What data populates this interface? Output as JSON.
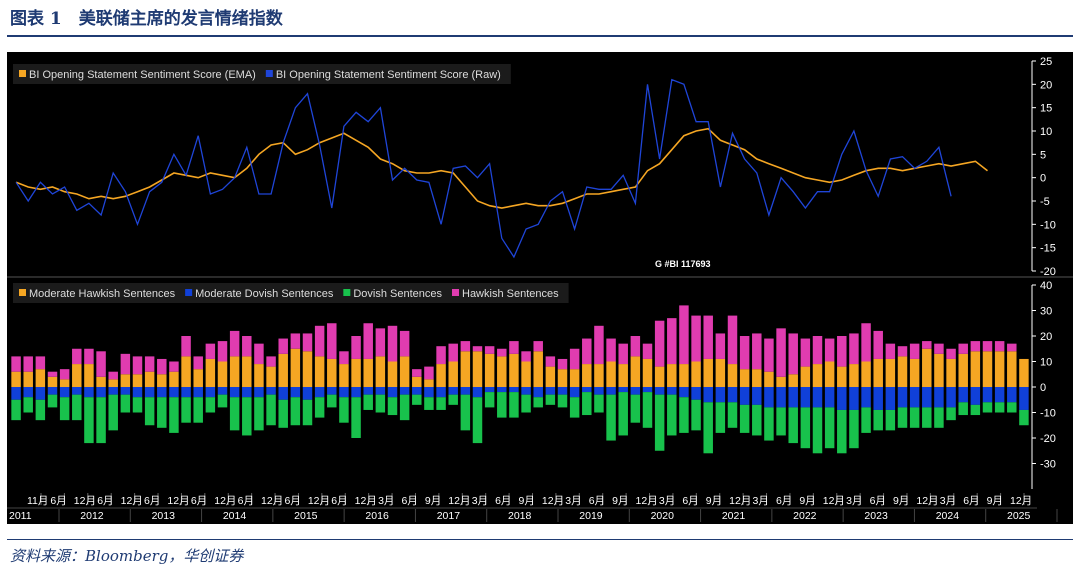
{
  "header": {
    "title": "图表 1　美联储主席的发言情绪指数"
  },
  "footer": {
    "source": "资料来源：Bloomberg，华创证券"
  },
  "chart_data": [
    {
      "type": "line",
      "watermark": "G #BI 117693",
      "x_unit": "quarter index (2011Q4 = 0)",
      "ylim": [
        -20,
        25
      ],
      "yticks": [
        25,
        20,
        15,
        10,
        5,
        0,
        -5,
        -10,
        -15,
        -20
      ],
      "legend_position": "top-left",
      "series": [
        {
          "name": "BI Opening Statement Sentiment Score (EMA)",
          "color": "#f5a623",
          "values": [
            -1,
            -2,
            -2.5,
            -2,
            -3,
            -3.5,
            -4.5,
            -4,
            -4.5,
            -4,
            -3,
            -2,
            -0.5,
            1,
            0.5,
            0,
            1,
            0.5,
            0,
            2,
            5,
            7,
            7.5,
            5,
            6,
            7.5,
            8.5,
            9.5,
            8,
            6.5,
            4,
            3,
            1.5,
            1,
            1,
            1.5,
            1,
            -2,
            -5,
            -6,
            -6.5,
            -6,
            -5.5,
            -6,
            -6,
            -5.5,
            -4.5,
            -3.5,
            -3.5,
            -3,
            -2.5,
            -2,
            1.5,
            3,
            6,
            9,
            10,
            10.5,
            8,
            7,
            6,
            4,
            3,
            2,
            1,
            0,
            -0.5,
            -1,
            -0.5,
            0.5,
            1.5,
            2,
            2,
            1.5,
            2,
            2.5,
            3,
            2.5,
            3,
            3.5,
            1.5
          ]
        },
        {
          "name": "BI Opening Statement Sentiment Score (Raw)",
          "color": "#1f45d8",
          "values": [
            -1,
            -5,
            -1,
            -3.5,
            -2,
            -7,
            -5.5,
            -8,
            1,
            -3,
            -10,
            -3,
            -1,
            5,
            0.5,
            9,
            -3.5,
            -2.5,
            0,
            6.5,
            -3.5,
            -3.5,
            7.5,
            15,
            18,
            7,
            -6.5,
            11,
            14,
            12,
            15,
            -0.5,
            2,
            -0.5,
            -1,
            -10,
            2,
            2.5,
            0,
            3,
            -13,
            -17,
            -11,
            -10,
            -5,
            -3,
            -11,
            -2,
            -2.5,
            -2.5,
            0.5,
            -5.5,
            20,
            4,
            21,
            20,
            12,
            12,
            -2,
            9.5,
            4,
            1,
            -8,
            0,
            -3,
            -6.5,
            -3,
            -3,
            5,
            10,
            1.5,
            -4,
            4,
            4.5,
            2,
            3.5,
            6.5,
            -4
          ]
        }
      ]
    },
    {
      "type": "bar",
      "stacked": true,
      "ylim": [
        -40,
        40
      ],
      "yticks": [
        40,
        30,
        20,
        10,
        0,
        -10,
        -20,
        -30
      ],
      "legend_position": "top-left",
      "x_tick_labels": [
        "11月",
        "6月",
        "12月",
        "6月",
        "12月",
        "6月",
        "12月",
        "6月",
        "12月",
        "6月",
        "12月",
        "6月",
        "12月",
        "6月",
        "12月",
        "3月",
        "6月",
        "9月",
        "12月",
        "3月",
        "6月",
        "9月",
        "12月",
        "3月",
        "6月",
        "9月",
        "12月",
        "3月",
        "6月",
        "9月",
        "12月",
        "3月",
        "6月",
        "9月",
        "12月",
        "3月",
        "6月",
        "9月",
        "12月",
        "3月",
        "6月",
        "9月",
        "12月"
      ],
      "x_year_labels": [
        "2011",
        "2012",
        "2013",
        "2014",
        "2015",
        "2016",
        "2017",
        "2018",
        "2019",
        "2020",
        "2021",
        "2022",
        "2023",
        "2024",
        "2025"
      ],
      "series": [
        {
          "name": "Moderate Hawkish Sentences",
          "color": "#f5a623",
          "values": [
            6,
            6,
            7,
            4,
            3,
            9,
            9,
            4,
            3,
            5,
            5,
            6,
            5,
            6,
            12,
            7,
            11,
            10,
            12,
            12,
            9,
            8,
            13,
            15,
            14,
            12,
            11,
            9,
            11,
            11,
            12,
            10,
            12,
            4,
            3,
            9,
            10,
            14,
            14,
            13,
            12,
            13,
            10,
            14,
            8,
            7,
            7,
            9,
            9,
            10,
            9,
            12,
            11,
            8,
            9,
            9,
            10,
            11,
            11,
            9,
            7,
            7,
            6,
            4,
            5,
            8,
            9,
            10,
            8,
            9,
            10,
            11,
            11,
            12,
            11,
            15,
            13,
            11,
            13,
            14,
            14,
            14,
            14,
            11
          ]
        },
        {
          "name": "Moderate Dovish Sentences",
          "color": "#1040d8",
          "values": [
            -5,
            -4,
            -5,
            -3,
            -4,
            -3,
            -4,
            -4,
            -3,
            -3,
            -4,
            -4,
            -4,
            -4,
            -4,
            -4,
            -4,
            -3,
            -4,
            -4,
            -4,
            -3,
            -5,
            -4,
            -5,
            -4,
            -3,
            -4,
            -4,
            -3,
            -3,
            -4,
            -3,
            -3,
            -4,
            -4,
            -3,
            -3,
            -4,
            -2,
            -2,
            -2,
            -3,
            -4,
            -3,
            -3,
            -4,
            -2,
            -3,
            -3,
            -2,
            -3,
            -2,
            -3,
            -3,
            -4,
            -5,
            -6,
            -6,
            -6,
            -7,
            -7,
            -8,
            -8,
            -8,
            -8,
            -8,
            -8,
            -9,
            -9,
            -8,
            -9,
            -9,
            -8,
            -8,
            -8,
            -8,
            -8,
            -6,
            -7,
            -6,
            -6,
            -6,
            -9
          ]
        },
        {
          "name": "Dovish Sentences",
          "color": "#18c24c",
          "values": [
            -8,
            -6,
            -8,
            -5,
            -9,
            -10,
            -18,
            -18,
            -14,
            -7,
            -6,
            -11,
            -12,
            -14,
            -10,
            -10,
            -6,
            -5,
            -13,
            -15,
            -13,
            -12,
            -11,
            -11,
            -10,
            -8,
            -5,
            -10,
            -16,
            -6,
            -7,
            -7,
            -10,
            -4,
            -5,
            -5,
            -4,
            -14,
            -18,
            -6,
            -10,
            -10,
            -7,
            -4,
            -4,
            -5,
            -8,
            -9,
            -7,
            -18,
            -17,
            -11,
            -14,
            -22,
            -16,
            -14,
            -12,
            -20,
            -12,
            -10,
            -11,
            -12,
            -13,
            -11,
            -14,
            -16,
            -18,
            -16,
            -17,
            -15,
            -10,
            -8,
            -8,
            -8,
            -8,
            -8,
            -8,
            -5,
            -5,
            -4,
            -4,
            -4,
            -4,
            -6
          ]
        },
        {
          "name": "Hawkish Sentences",
          "color": "#e03cb0",
          "values": [
            6,
            6,
            5,
            2,
            4,
            6,
            6,
            10,
            3,
            8,
            7,
            6,
            6,
            4,
            8,
            5,
            6,
            8,
            10,
            8,
            8,
            4,
            6,
            6,
            7,
            12,
            14,
            5,
            9,
            14,
            11,
            14,
            10,
            3,
            5,
            7,
            7,
            4,
            2,
            3,
            3,
            5,
            4,
            4,
            4,
            4,
            8,
            10,
            15,
            9,
            8,
            8,
            6,
            18,
            18,
            23,
            18,
            17,
            10,
            19,
            13,
            14,
            13,
            19,
            16,
            11,
            11,
            9,
            12,
            12,
            15,
            11,
            6,
            4,
            6,
            3,
            4,
            4,
            4,
            4,
            4,
            4,
            3,
            0
          ]
        }
      ]
    }
  ]
}
